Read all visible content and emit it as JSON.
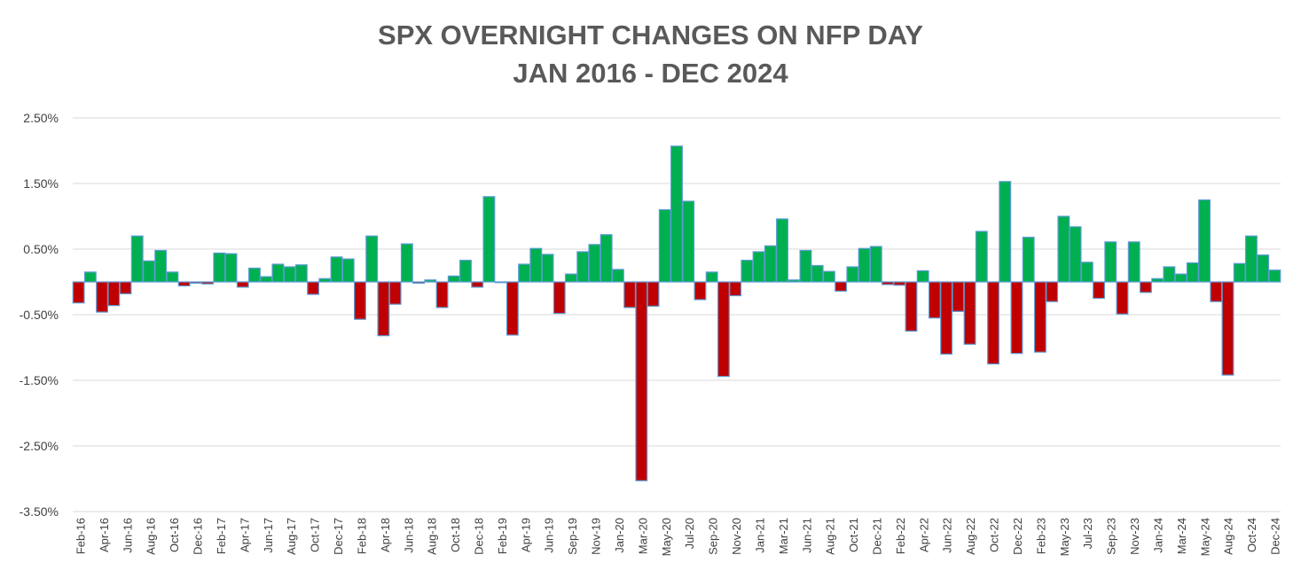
{
  "chart_data": {
    "type": "bar",
    "title": [
      "SPX OVERNIGHT CHANGES ON NFP DAY",
      "JAN 2016 - DEC 2024"
    ],
    "xlabel": "",
    "ylabel": "",
    "ylim": [
      -3.5,
      2.5
    ],
    "yticks": [
      "2.50%",
      "1.50%",
      "0.50%",
      "-0.50%",
      "-1.50%",
      "-2.50%",
      "-3.50%"
    ],
    "ytick_values": [
      2.5,
      1.5,
      0.5,
      -0.5,
      -1.5,
      -2.5,
      -3.5
    ],
    "grid": true,
    "positive_color": "#00b050",
    "negative_color": "#c00000",
    "border_color": "#5b9bd5",
    "x_labels_shown": [
      "Feb-16",
      "Apr-16",
      "Jun-16",
      "Aug-16",
      "Oct-16",
      "Dec-16",
      "Feb-17",
      "Apr-17",
      "Jun-17",
      "Aug-17",
      "Oct-17",
      "Dec-17",
      "Feb-18",
      "Apr-18",
      "Jun-18",
      "Aug-18",
      "Oct-18",
      "Dec-18",
      "Feb-19",
      "Apr-19",
      "Jun-19",
      "Sep-19",
      "Nov-19",
      "Jan-20",
      "Mar-20",
      "May-20",
      "Jul-20",
      "Sep-20",
      "Nov-20",
      "Jan-21",
      "Mar-21",
      "Jun-21",
      "Aug-21",
      "Oct-21",
      "Dec-21",
      "Feb-22",
      "Apr-22",
      "Jun-22",
      "Aug-22",
      "Oct-22",
      "Dec-22",
      "Feb-23",
      "May-23",
      "Jul-23",
      "Sep-23",
      "Nov-23",
      "Jan-24",
      "Mar-24",
      "May-24",
      "Aug-24",
      "Oct-24",
      "Dec-24"
    ],
    "values": [
      -0.32,
      0.15,
      -0.46,
      -0.36,
      -0.18,
      0.7,
      0.32,
      0.48,
      0.15,
      -0.06,
      -0.02,
      -0.03,
      0.44,
      0.43,
      -0.08,
      0.21,
      0.08,
      0.27,
      0.23,
      0.26,
      -0.19,
      0.05,
      0.38,
      0.35,
      -0.57,
      0.7,
      -0.82,
      -0.34,
      0.58,
      -0.02,
      0.03,
      -0.39,
      0.09,
      0.33,
      -0.08,
      1.3,
      -0.01,
      -0.81,
      0.27,
      0.51,
      0.42,
      -0.48,
      0.12,
      0.46,
      0.57,
      0.72,
      0.19,
      -0.39,
      -3.03,
      -0.37,
      1.1,
      2.07,
      1.23,
      -0.27,
      0.15,
      -1.44,
      -0.21,
      0.33,
      0.46,
      0.55,
      0.96,
      0.03,
      0.48,
      0.25,
      0.16,
      -0.14,
      0.23,
      0.51,
      0.54,
      -0.04,
      -0.05,
      -0.75,
      0.17,
      -0.55,
      -1.1,
      -0.45,
      -0.95,
      0.77,
      -1.25,
      1.53,
      -1.09,
      0.68,
      -1.07,
      -0.3,
      1.0,
      0.84,
      0.3,
      -0.25,
      0.61,
      -0.49,
      0.61,
      -0.16,
      0.05,
      0.23,
      0.12,
      0.29,
      1.25,
      -0.3,
      -1.42,
      0.28,
      0.7,
      0.41,
      0.18
    ]
  }
}
